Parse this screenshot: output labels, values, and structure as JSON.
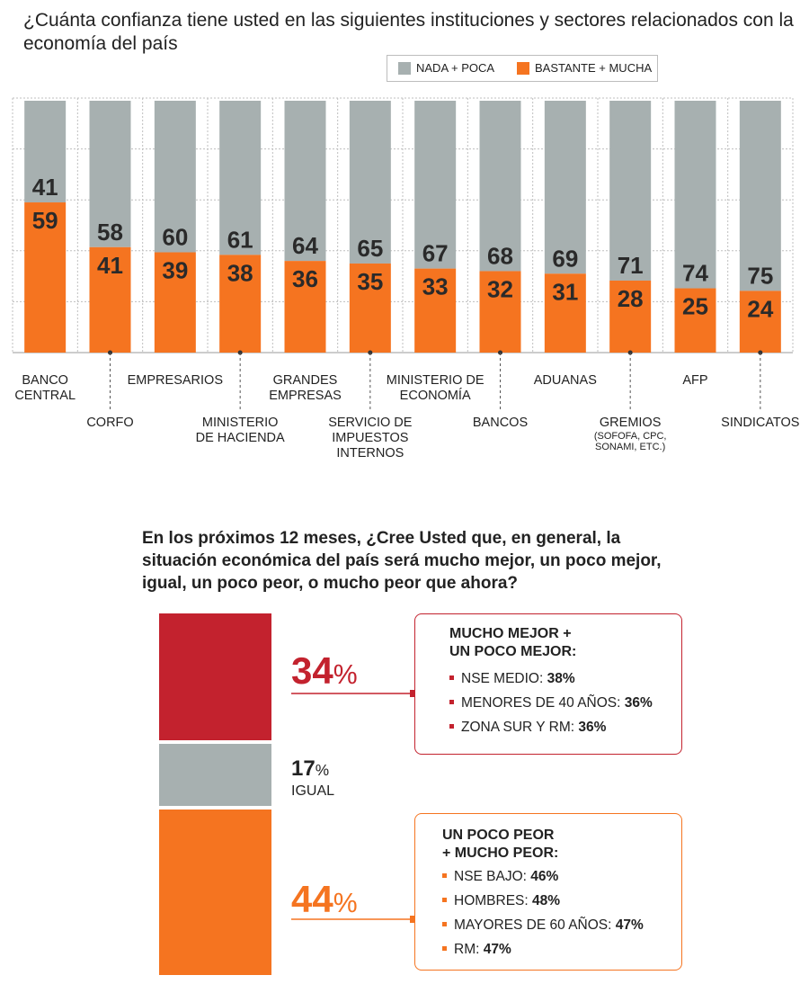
{
  "colors": {
    "gray": "#a7b0b0",
    "orange": "#f57420",
    "red": "#c3222e",
    "grid": "#bfbfbf",
    "text": "#222222",
    "label_dark": "#2a2a2a"
  },
  "chart_data": [
    {
      "type": "bar",
      "stacked": true,
      "title": "¿Cuánta confianza tiene usted en las siguientes instituciones y sectores relacionados con la economía del país",
      "legend_position": "top-right",
      "grid": true,
      "ylim": [
        0,
        100
      ],
      "categories": [
        "BANCO CENTRAL",
        "CORFO",
        "EMPRESARIOS",
        "MINISTERIO DE HACIENDA",
        "GRANDES EMPRESAS",
        "SERVICIO DE IMPUESTOS INTERNOS",
        "MINISTERIO DE ECONOMÍA",
        "BANCOS",
        "ADUANAS",
        "GREMIOS (SOFOFA, CPC, SONAMI, ETC.)",
        "AFP",
        "SINDICATOS"
      ],
      "series": [
        {
          "name": "NADA + POCA",
          "color": "#a7b0b0",
          "values": [
            41,
            58,
            60,
            61,
            64,
            65,
            67,
            68,
            69,
            71,
            74,
            75
          ]
        },
        {
          "name": "BASTANTE + MUCHA",
          "color": "#f57420",
          "values": [
            59,
            41,
            39,
            38,
            36,
            35,
            33,
            32,
            31,
            28,
            25,
            24
          ]
        }
      ]
    },
    {
      "type": "bar",
      "stacked": true,
      "title": "En los próximos 12 meses, ¿Cree Usted que, en general, la situación económica del país será mucho mejor, un poco mejor, igual, un poco peor, o mucho peor que ahora?",
      "series": [
        {
          "name": "MUCHO MEJOR + UN POCO MEJOR",
          "value": 34,
          "color": "#c3222e"
        },
        {
          "name": "IGUAL",
          "value": 17,
          "color": "#a7b0b0"
        },
        {
          "name": "UN POCO PEOR + MUCHO PEOR",
          "value": 44,
          "color": "#f57420"
        }
      ]
    }
  ],
  "chart1": {
    "title": "¿Cuánta confianza tiene usted en las siguientes instituciones y sectores relacionados con la economía del país",
    "legend": {
      "gray_label": "NADA + POCA",
      "orange_label": "BASTANTE + MUCHA"
    },
    "labels": [
      {
        "lines": [
          "BANCO",
          "CENTRAL"
        ],
        "sub": []
      },
      {
        "lines": [
          "CORFO"
        ],
        "sub": []
      },
      {
        "lines": [
          "EMPRESARIOS"
        ],
        "sub": []
      },
      {
        "lines": [
          "MINISTERIO",
          "DE HACIENDA"
        ],
        "sub": []
      },
      {
        "lines": [
          "GRANDES",
          "EMPRESAS"
        ],
        "sub": []
      },
      {
        "lines": [
          "SERVICIO DE",
          "IMPUESTOS",
          "INTERNOS"
        ],
        "sub": []
      },
      {
        "lines": [
          "MINISTERIO DE",
          "ECONOMÍA"
        ],
        "sub": []
      },
      {
        "lines": [
          "BANCOS"
        ],
        "sub": []
      },
      {
        "lines": [
          "ADUANAS"
        ],
        "sub": []
      },
      {
        "lines": [
          "GREMIOS"
        ],
        "sub": [
          "(SOFOFA, CPC,",
          "SONAMI, ETC.)"
        ]
      },
      {
        "lines": [
          "AFP"
        ],
        "sub": []
      },
      {
        "lines": [
          "SINDICATOS"
        ],
        "sub": []
      }
    ]
  },
  "chart2": {
    "title": "En los próximos 12 meses, ¿Cree Usted que, en general, la situación económica del país será mucho mejor, un poco mejor, igual, un poco peor, o mucho peor que ahora?",
    "better": {
      "value": "34",
      "pct": "%",
      "box_title_1": "MUCHO MEJOR +",
      "box_title_2": "UN POCO MEJOR:",
      "items": [
        {
          "label": "NSE MEDIO: ",
          "value": "38%"
        },
        {
          "label": "MENORES DE 40 AÑOS: ",
          "value": "36%"
        },
        {
          "label": "ZONA SUR Y RM: ",
          "value": "36%"
        }
      ]
    },
    "equal": {
      "value": "17",
      "pct": "%",
      "label": "IGUAL"
    },
    "worse": {
      "value": "44",
      "pct": "%",
      "box_title_1": "UN POCO PEOR",
      "box_title_2": "+ MUCHO PEOR:",
      "items": [
        {
          "label": "NSE BAJO: ",
          "value": "46%"
        },
        {
          "label": "HOMBRES: ",
          "value": "48%"
        },
        {
          "label": "MAYORES DE 60 AÑOS: ",
          "value": "47%"
        },
        {
          "label": "RM: ",
          "value": "47%"
        }
      ]
    }
  }
}
